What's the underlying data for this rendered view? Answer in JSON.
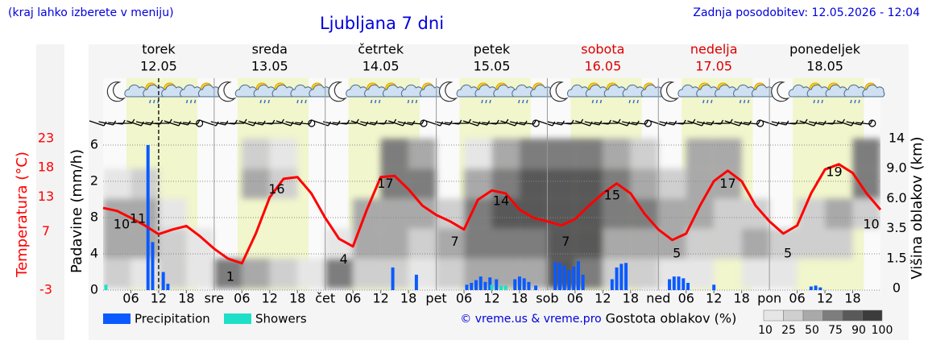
{
  "header": {
    "note": "(kraj lahko izberete v meniju)",
    "title": "Ljubljana 7 dni",
    "updated": "Zadnja posodobitev: 12.05.2026 - 12:04",
    "credit": "© vreme.us & vreme.pro"
  },
  "chart_data": {
    "type": "meteogram",
    "days": [
      {
        "name": "torek",
        "date": "12.05",
        "color": "#000000"
      },
      {
        "name": "sreda",
        "date": "13.05",
        "color": "#000000"
      },
      {
        "name": "četrtek",
        "date": "14.05",
        "color": "#000000"
      },
      {
        "name": "petek",
        "date": "15.05",
        "color": "#000000"
      },
      {
        "name": "sobota",
        "date": "16.05",
        "color": "#dd0000"
      },
      {
        "name": "nedelja",
        "date": "17.05",
        "color": "#dd0000"
      },
      {
        "name": "ponedeljek",
        "date": "18.05",
        "color": "#000000"
      }
    ],
    "xlim": [
      0,
      168
    ],
    "xticks": [
      {
        "value": 6,
        "label": "06"
      },
      {
        "value": 12,
        "label": "12"
      },
      {
        "value": 18,
        "label": "18"
      },
      {
        "value": 24,
        "label": "sre"
      },
      {
        "value": 30,
        "label": "06"
      },
      {
        "value": 36,
        "label": "12"
      },
      {
        "value": 42,
        "label": "18"
      },
      {
        "value": 48,
        "label": "čet"
      },
      {
        "value": 54,
        "label": "06"
      },
      {
        "value": 60,
        "label": "12"
      },
      {
        "value": 66,
        "label": "18"
      },
      {
        "value": 72,
        "label": "pet"
      },
      {
        "value": 78,
        "label": "06"
      },
      {
        "value": 84,
        "label": "12"
      },
      {
        "value": 90,
        "label": "18"
      },
      {
        "value": 96,
        "label": "sob"
      },
      {
        "value": 102,
        "label": "06"
      },
      {
        "value": 108,
        "label": "12"
      },
      {
        "value": 114,
        "label": "18"
      },
      {
        "value": 120,
        "label": "ned"
      },
      {
        "value": 126,
        "label": "06"
      },
      {
        "value": 132,
        "label": "12"
      },
      {
        "value": 138,
        "label": "18"
      },
      {
        "value": 144,
        "label": "pon"
      },
      {
        "value": 150,
        "label": "06"
      },
      {
        "value": 156,
        "label": "12"
      },
      {
        "value": 162,
        "label": "18"
      }
    ],
    "now": 12,
    "temperature": {
      "name": "Temperatura (°C)",
      "color": "#ff0000",
      "ylim": [
        -3,
        23
      ],
      "yticks": [
        23,
        18,
        13,
        7,
        -3
      ],
      "x": [
        0,
        3,
        6,
        9,
        12,
        15,
        18,
        21,
        24,
        27,
        30,
        33,
        36,
        39,
        42,
        45,
        48,
        51,
        54,
        57,
        60,
        63,
        66,
        69,
        72,
        75,
        78,
        81,
        84,
        87,
        90,
        93,
        96,
        99,
        102,
        105,
        108,
        111,
        114,
        117,
        120,
        123,
        126,
        129,
        132,
        135,
        138,
        141,
        144,
        147,
        150,
        153,
        156,
        159,
        162,
        165,
        168
      ],
      "values": [
        11.1,
        10.6,
        9.4,
        8.1,
        6.6,
        7.4,
        8.0,
        6.2,
        4.1,
        2.4,
        1.6,
        6.7,
        12.9,
        16.1,
        16.4,
        13.6,
        9.4,
        5.8,
        4.5,
        10.8,
        16.4,
        16.6,
        14.3,
        11.5,
        9.9,
        8.8,
        7.4,
        12.5,
        14.1,
        13.6,
        10.8,
        9.4,
        8.8,
        8.1,
        9.2,
        11.5,
        13.6,
        15.3,
        13.6,
        10.1,
        7.4,
        5.6,
        6.7,
        11.5,
        15.7,
        17.5,
        15.7,
        11.5,
        8.8,
        6.7,
        8.1,
        13.6,
        17.7,
        18.6,
        17.1,
        13.6,
        10.8
      ],
      "labels": {
        "x": [
          4,
          7.5,
          27.5,
          37.5,
          52,
          61,
          76,
          86,
          100,
          110,
          124,
          135,
          148,
          158,
          166
        ],
        "values": [
          10,
          11,
          1,
          16,
          4,
          17,
          7,
          14,
          7,
          15,
          5,
          17,
          5,
          19,
          10
        ]
      }
    },
    "precipitation": {
      "axis_label": "Padavine (mm/h)",
      "ylim": [
        0,
        16
      ],
      "yticks": [
        {
          "value": 16,
          "label": "6"
        },
        {
          "value": 12,
          "label": "2"
        },
        8,
        4,
        0
      ],
      "series": [
        {
          "name": "Precipitation",
          "color": "#0a5aff",
          "x": [
            9.7,
            10.7,
            13,
            14,
            62.6,
            67.7,
            78.6,
            79.6,
            80.6,
            81.6,
            82.6,
            83.6,
            85,
            89,
            90,
            91,
            92,
            93.5,
            97.7,
            98.7,
            99.7,
            100.7,
            101.7,
            102.7,
            103.7,
            110,
            111,
            112,
            113,
            122.4,
            123.4,
            124.4,
            125.4,
            126.4,
            132,
            153,
            154,
            155
          ],
          "values": [
            16,
            5.3,
            2,
            0.7,
            2.5,
            1.7,
            0.6,
            0.8,
            1.1,
            1.5,
            0.9,
            1.4,
            1.2,
            1.2,
            1.5,
            1.3,
            0.9,
            0.5,
            3.1,
            3.0,
            2.7,
            2.2,
            2.6,
            3.2,
            1.7,
            1.2,
            2.5,
            2.9,
            3.0,
            1.2,
            1.5,
            1.5,
            1.3,
            0.8,
            0.6,
            0.4,
            0.5,
            0.3
          ]
        },
        {
          "name": "Showers",
          "color": "#1ee0c8",
          "x": [
            0.6,
            84,
            86,
            87
          ],
          "values": [
            0.6,
            0.6,
            0.5,
            0.5
          ]
        }
      ]
    },
    "clouds": {
      "axis_label": "Višina oblakov (km)",
      "legend_title": "Gostota oblakov (%)",
      "yticks": [
        0,
        1.5,
        3.5,
        {
          "value": 6,
          "label": "6.0"
        },
        {
          "value": 9,
          "label": "9.0"
        },
        14
      ],
      "levels": [
        10,
        25,
        50,
        75,
        90,
        100
      ],
      "colors": [
        "#e6e6e6",
        "#cfcfcf",
        "#a9a9a9",
        "#7d7d7d",
        "#595959",
        "#3c3c3c"
      ],
      "rows": [
        [
          25,
          10,
          25,
          10,
          75,
          50,
          25,
          10,
          75,
          25,
          25,
          10,
          25,
          50,
          50,
          50,
          90,
          75,
          25,
          25,
          10,
          10,
          0,
          10,
          10,
          0,
          0,
          0
        ],
        [
          50,
          50,
          25,
          10,
          0,
          0,
          0,
          0,
          10,
          50,
          50,
          25,
          50,
          75,
          75,
          75,
          90,
          90,
          50,
          50,
          50,
          25,
          25,
          50,
          25,
          25,
          25,
          0
        ],
        [
          50,
          50,
          10,
          0,
          0,
          0,
          0,
          0,
          0,
          50,
          50,
          50,
          25,
          75,
          90,
          90,
          90,
          90,
          75,
          75,
          50,
          50,
          25,
          25,
          0,
          25,
          50,
          25
        ],
        [
          10,
          25,
          0,
          0,
          0,
          50,
          25,
          0,
          0,
          0,
          75,
          75,
          0,
          50,
          75,
          90,
          90,
          90,
          75,
          50,
          25,
          50,
          50,
          0,
          0,
          0,
          0,
          75
        ],
        [
          0,
          0,
          0,
          0,
          0,
          25,
          10,
          0,
          0,
          0,
          75,
          50,
          0,
          10,
          50,
          75,
          75,
          75,
          50,
          25,
          0,
          50,
          50,
          0,
          0,
          0,
          0,
          75
        ]
      ]
    }
  }
}
